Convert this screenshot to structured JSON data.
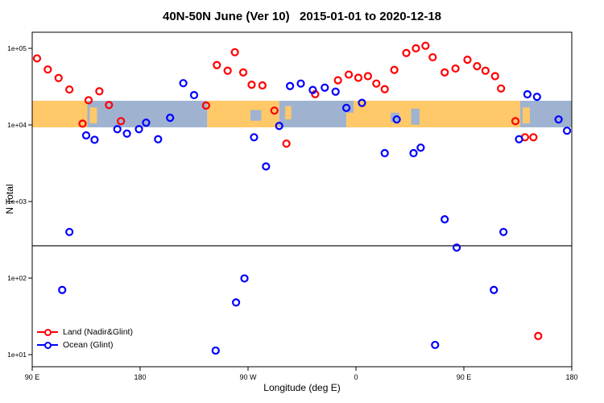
{
  "title": "40N-50N June (Ver 10)   2015-01-01 to 2020-12-18",
  "chart_data": {
    "type": "scatter",
    "xlabel": "Longitude (deg E)",
    "ylabel": "N Total",
    "grid": false,
    "x_axis": {
      "range_deg": [
        90,
        540
      ],
      "ticks": [
        {
          "deg": 90,
          "label": "90 E"
        },
        {
          "deg": 180,
          "label": "180"
        },
        {
          "deg": 270,
          "label": "90 W"
        },
        {
          "deg": 360,
          "label": "0"
        },
        {
          "deg": 450,
          "label": "90 E"
        },
        {
          "deg": 540,
          "label": "180"
        }
      ]
    },
    "y_axis": {
      "scale": "log10",
      "range": [
        10,
        130000
      ],
      "ticks": [
        {
          "value": 10,
          "label": "1e+01"
        },
        {
          "value": 100,
          "label": "1e+02"
        },
        {
          "value": 1000,
          "label": "1e+03"
        },
        {
          "value": 10000,
          "label": "1e+04"
        },
        {
          "value": 100000,
          "label": "1e+05"
        }
      ]
    },
    "threshold_line": {
      "value": 264,
      "color": "#000000"
    },
    "map_band": {
      "value_range": [
        9300,
        20700
      ],
      "land_color": "#FFC868",
      "ocean_color": "#9FB3D1",
      "segments": [
        {
          "from": 90,
          "to": 136,
          "type": "land"
        },
        {
          "from": 136,
          "to": 236,
          "type": "ocean"
        },
        {
          "from": 138,
          "to": 144,
          "type": "land",
          "y0": 0.25,
          "y1": 0.85
        },
        {
          "from": 236,
          "to": 296,
          "type": "land"
        },
        {
          "from": 272,
          "to": 281,
          "type": "ocean",
          "y0": 0.35,
          "y1": 0.75
        },
        {
          "from": 296,
          "to": 352,
          "type": "ocean"
        },
        {
          "from": 301,
          "to": 306,
          "type": "land",
          "y0": 0.2,
          "y1": 0.7
        },
        {
          "from": 352,
          "to": 497,
          "type": "land"
        },
        {
          "from": 352,
          "to": 358,
          "type": "ocean",
          "y0": 0.0,
          "y1": 0.45
        },
        {
          "from": 389,
          "to": 396,
          "type": "ocean",
          "y0": 0.45,
          "y1": 0.8
        },
        {
          "from": 406,
          "to": 413,
          "type": "ocean",
          "y0": 0.3,
          "y1": 0.9
        },
        {
          "from": 497,
          "to": 540,
          "type": "ocean"
        },
        {
          "from": 499,
          "to": 505,
          "type": "land",
          "y0": 0.25,
          "y1": 0.85
        }
      ]
    },
    "series": [
      {
        "name": "Land (Nadir&Glint)",
        "color": "#FF0000",
        "marker": "open-circle",
        "points": [
          [
            94,
            74000
          ],
          [
            103,
            53000
          ],
          [
            112,
            41000
          ],
          [
            121,
            29000
          ],
          [
            132,
            10400
          ],
          [
            137,
            21000
          ],
          [
            146,
            27500
          ],
          [
            154,
            18200
          ],
          [
            164,
            11200
          ],
          [
            235,
            17900
          ],
          [
            244,
            60500
          ],
          [
            253,
            51000
          ],
          [
            259,
            89000
          ],
          [
            266,
            48500
          ],
          [
            273,
            33500
          ],
          [
            282,
            32800
          ],
          [
            292,
            15400
          ],
          [
            302,
            5700
          ],
          [
            326,
            25200
          ],
          [
            345,
            38300
          ],
          [
            354,
            45400
          ],
          [
            362,
            41300
          ],
          [
            370,
            43300
          ],
          [
            377,
            34700
          ],
          [
            384,
            29300
          ],
          [
            392,
            52300
          ],
          [
            402,
            87000
          ],
          [
            410,
            100000
          ],
          [
            418,
            108000
          ],
          [
            424,
            76500
          ],
          [
            434,
            48500
          ],
          [
            443,
            54500
          ],
          [
            453,
            71000
          ],
          [
            461,
            58500
          ],
          [
            468,
            51000
          ],
          [
            476,
            43300
          ],
          [
            481,
            29900
          ],
          [
            493,
            11200
          ],
          [
            501,
            6900
          ],
          [
            508,
            6900
          ],
          [
            512,
            17.5
          ]
        ]
      },
      {
        "name": "Ocean (Glint)",
        "color": "#0000FF",
        "marker": "open-circle",
        "points": [
          [
            115,
            70
          ],
          [
            121,
            400
          ],
          [
            135,
            7300
          ],
          [
            142,
            6400
          ],
          [
            161,
            8800
          ],
          [
            169,
            7700
          ],
          [
            179,
            8800
          ],
          [
            185,
            10700
          ],
          [
            195,
            6500
          ],
          [
            205,
            12400
          ],
          [
            216,
            35100
          ],
          [
            225,
            24500
          ],
          [
            243,
            11.3
          ],
          [
            260,
            48
          ],
          [
            267,
            99
          ],
          [
            275,
            6900
          ],
          [
            285,
            2870
          ],
          [
            296,
            9700
          ],
          [
            305,
            32200
          ],
          [
            314,
            34700
          ],
          [
            324,
            28600
          ],
          [
            334,
            30700
          ],
          [
            343,
            27200
          ],
          [
            352,
            16700
          ],
          [
            365,
            19400
          ],
          [
            384,
            4280
          ],
          [
            394,
            11800
          ],
          [
            408,
            4280
          ],
          [
            414,
            5050
          ],
          [
            426,
            13.4
          ],
          [
            434,
            585
          ],
          [
            444,
            250
          ],
          [
            475,
            70
          ],
          [
            483,
            400
          ],
          [
            496,
            6500
          ],
          [
            503,
            25100
          ],
          [
            511,
            23300
          ],
          [
            529,
            11800
          ],
          [
            536,
            8400
          ]
        ]
      }
    ],
    "legend": {
      "position": "bottom-left"
    }
  }
}
